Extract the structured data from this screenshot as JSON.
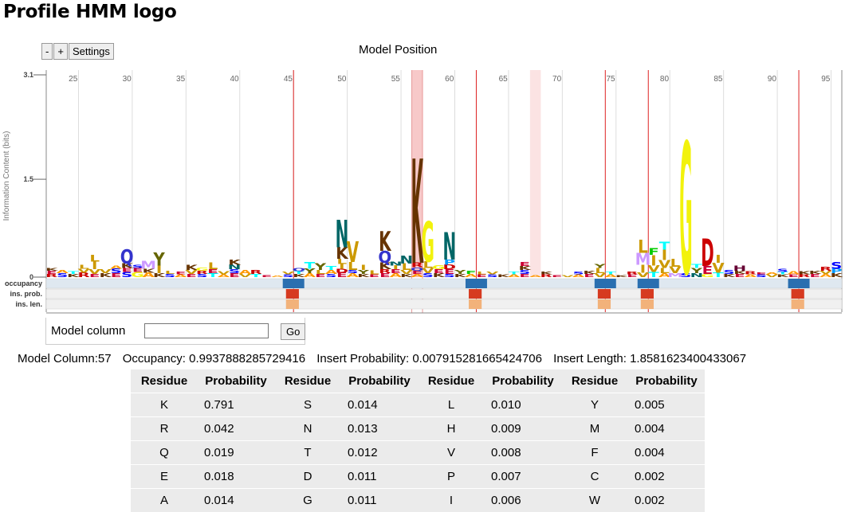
{
  "page": {
    "title": "Profile HMM logo"
  },
  "controls": {
    "zoom_out": "-",
    "zoom_in": "+",
    "settings": "Settings"
  },
  "logo": {
    "x_title": "Model Position",
    "y_title": "Information Content (bits)",
    "y_ticks": [
      "3.1",
      "1.5",
      "0"
    ],
    "x_ticks": [
      "25",
      "30",
      "35",
      "40",
      "45",
      "50",
      "55",
      "60",
      "65",
      "70",
      "75",
      "80",
      "85",
      "90",
      "95"
    ],
    "row_labels": [
      "occupancy",
      "ins. prob.",
      "ins. len."
    ]
  },
  "chart_data": {
    "type": "bar",
    "title": "",
    "xlabel": "Model Position",
    "ylabel": "Information Content (bits)",
    "ylim": [
      0,
      3.1
    ],
    "xlim": [
      23,
      97
    ],
    "start_position": 23,
    "grid": true,
    "highlighted_positions": [
      57,
      68
    ],
    "insert_markers": [
      46,
      63,
      75,
      79,
      93
    ],
    "stacks": [
      {
        "x": 23,
        "glyphs": [
          [
            "R",
            0.05
          ],
          [
            "E",
            0.05
          ],
          [
            "K",
            0.04
          ]
        ]
      },
      {
        "x": 24,
        "glyphs": [
          [
            "S",
            0.06
          ],
          [
            "A",
            0.05
          ]
        ]
      },
      {
        "x": 25,
        "glyphs": [
          [
            "K",
            0.05
          ],
          [
            "T",
            0.04
          ]
        ]
      },
      {
        "x": 26,
        "glyphs": [
          [
            "R",
            0.07
          ],
          [
            "V",
            0.06
          ],
          [
            "L",
            0.06
          ]
        ]
      },
      {
        "x": 27,
        "glyphs": [
          [
            "E",
            0.05
          ],
          [
            "V",
            0.07
          ],
          [
            "I",
            0.12
          ],
          [
            "L",
            0.1
          ]
        ]
      },
      {
        "x": 28,
        "glyphs": [
          [
            "K",
            0.06
          ],
          [
            "V",
            0.06
          ]
        ]
      },
      {
        "x": 29,
        "glyphs": [
          [
            "E",
            0.06
          ],
          [
            "S",
            0.07
          ],
          [
            "A",
            0.05
          ]
        ]
      },
      {
        "x": 30,
        "glyphs": [
          [
            "S",
            0.08
          ],
          [
            "E",
            0.06
          ],
          [
            "K",
            0.07
          ],
          [
            "Q",
            0.22
          ]
        ]
      },
      {
        "x": 31,
        "glyphs": [
          [
            "G",
            0.08
          ],
          [
            "E",
            0.06
          ],
          [
            "S",
            0.05
          ]
        ]
      },
      {
        "x": 32,
        "glyphs": [
          [
            "A",
            0.07
          ],
          [
            "K",
            0.06
          ],
          [
            "M",
            0.12
          ]
        ]
      },
      {
        "x": 33,
        "glyphs": [
          [
            "K",
            0.06
          ],
          [
            "I",
            0.12
          ],
          [
            "Y",
            0.2
          ]
        ]
      },
      {
        "x": 34,
        "glyphs": [
          [
            "S",
            0.05
          ],
          [
            "L",
            0.05
          ]
        ]
      },
      {
        "x": 35,
        "glyphs": [
          [
            "A",
            0.04
          ],
          [
            "E",
            0.04
          ]
        ]
      },
      {
        "x": 36,
        "glyphs": [
          [
            "E",
            0.05
          ],
          [
            "V",
            0.06
          ],
          [
            "K",
            0.08
          ]
        ]
      },
      {
        "x": 37,
        "glyphs": [
          [
            "S",
            0.05
          ],
          [
            "R",
            0.05
          ],
          [
            "G",
            0.05
          ]
        ]
      },
      {
        "x": 38,
        "glyphs": [
          [
            "T",
            0.06
          ],
          [
            "E",
            0.06
          ],
          [
            "L",
            0.1
          ]
        ]
      },
      {
        "x": 39,
        "glyphs": [
          [
            "A",
            0.04
          ],
          [
            "V",
            0.05
          ]
        ]
      },
      {
        "x": 40,
        "glyphs": [
          [
            "E",
            0.06
          ],
          [
            "S",
            0.06
          ],
          [
            "N",
            0.07
          ],
          [
            "K",
            0.08
          ]
        ]
      },
      {
        "x": 41,
        "glyphs": [
          [
            "V",
            0.05
          ],
          [
            "A",
            0.06
          ]
        ]
      },
      {
        "x": 42,
        "glyphs": [
          [
            "T",
            0.05
          ],
          [
            "R",
            0.06
          ]
        ]
      },
      {
        "x": 43,
        "glyphs": [
          [
            "E",
            0.03
          ]
        ]
      },
      {
        "x": 44,
        "glyphs": [
          [
            "A",
            0.02
          ]
        ]
      },
      {
        "x": 45,
        "glyphs": [
          [
            "S",
            0.04
          ],
          [
            "V",
            0.04
          ]
        ]
      },
      {
        "x": 46,
        "glyphs": [
          [
            "K",
            0.05
          ],
          [
            "T",
            0.04
          ],
          [
            "Q",
            0.05
          ]
        ]
      },
      {
        "x": 47,
        "glyphs": [
          [
            "A",
            0.06
          ],
          [
            "Y",
            0.07
          ],
          [
            "T",
            0.1
          ]
        ]
      },
      {
        "x": 48,
        "glyphs": [
          [
            "E",
            0.05
          ],
          [
            "L",
            0.06
          ],
          [
            "Y",
            0.1
          ]
        ]
      },
      {
        "x": 49,
        "glyphs": [
          [
            "S",
            0.05
          ],
          [
            "A",
            0.06
          ],
          [
            "T",
            0.06
          ]
        ]
      },
      {
        "x": 50,
        "glyphs": [
          [
            "E",
            0.07
          ],
          [
            "D",
            0.06
          ],
          [
            "I",
            0.07
          ],
          [
            "L",
            0.08
          ],
          [
            "K",
            0.18
          ],
          [
            "N",
            0.42
          ]
        ]
      },
      {
        "x": 51,
        "glyphs": [
          [
            "A",
            0.06
          ],
          [
            "S",
            0.05
          ],
          [
            "L",
            0.12
          ],
          [
            "V",
            0.32
          ]
        ]
      },
      {
        "x": 52,
        "glyphs": [
          [
            "K",
            0.05
          ],
          [
            "Y",
            0.06
          ],
          [
            "I",
            0.08
          ]
        ]
      },
      {
        "x": 53,
        "glyphs": [
          [
            "E",
            0.04
          ],
          [
            "L",
            0.06
          ]
        ]
      },
      {
        "x": 54,
        "glyphs": [
          [
            "E",
            0.06
          ],
          [
            "R",
            0.06
          ],
          [
            "K",
            0.1
          ],
          [
            "Q",
            0.18
          ],
          [
            "K",
            0.3
          ]
        ]
      },
      {
        "x": 55,
        "glyphs": [
          [
            "A",
            0.06
          ],
          [
            "E",
            0.06
          ],
          [
            "I",
            0.06
          ],
          [
            "N",
            0.06
          ]
        ]
      },
      {
        "x": 56,
        "glyphs": [
          [
            "K",
            0.05
          ],
          [
            "V",
            0.06
          ],
          [
            "L",
            0.1
          ],
          [
            "N",
            0.12
          ]
        ]
      },
      {
        "x": 57,
        "glyphs": [
          [
            "A",
            0.05
          ],
          [
            "E",
            0.05
          ],
          [
            "Q",
            0.05
          ],
          [
            "R",
            0.07
          ],
          [
            "K",
            1.6
          ]
        ]
      },
      {
        "x": 58,
        "glyphs": [
          [
            "S",
            0.06
          ],
          [
            "V",
            0.08
          ],
          [
            "L",
            0.1
          ],
          [
            "G",
            0.62
          ]
        ]
      },
      {
        "x": 59,
        "glyphs": [
          [
            "K",
            0.06
          ],
          [
            "E",
            0.06
          ],
          [
            "G",
            0.06
          ]
        ]
      },
      {
        "x": 60,
        "glyphs": [
          [
            "S",
            0.05
          ],
          [
            "E",
            0.07
          ],
          [
            "D",
            0.07
          ],
          [
            "P",
            0.08
          ],
          [
            "N",
            0.42
          ]
        ]
      },
      {
        "x": 61,
        "glyphs": [
          [
            "K",
            0.05
          ],
          [
            "Y",
            0.06
          ]
        ]
      },
      {
        "x": 62,
        "glyphs": [
          [
            "A",
            0.05
          ],
          [
            "F",
            0.05
          ]
        ]
      },
      {
        "x": 63,
        "glyphs": [
          [
            "E",
            0.04
          ],
          [
            "L",
            0.04
          ]
        ]
      },
      {
        "x": 64,
        "glyphs": [
          [
            "S",
            0.04
          ],
          [
            "V",
            0.04
          ]
        ]
      },
      {
        "x": 65,
        "glyphs": [
          [
            "K",
            0.04
          ]
        ]
      },
      {
        "x": 66,
        "glyphs": [
          [
            "A",
            0.04
          ],
          [
            "T",
            0.04
          ]
        ]
      },
      {
        "x": 67,
        "glyphs": [
          [
            "E",
            0.05
          ],
          [
            "S",
            0.06
          ],
          [
            "K",
            0.06
          ],
          [
            "E",
            0.06
          ]
        ]
      },
      {
        "x": 68,
        "glyphs": [
          [
            "A",
            0.03
          ]
        ]
      },
      {
        "x": 69,
        "glyphs": [
          [
            "R",
            0.04
          ],
          [
            "K",
            0.04
          ]
        ]
      },
      {
        "x": 70,
        "glyphs": [
          [
            "E",
            0.03
          ]
        ]
      },
      {
        "x": 71,
        "glyphs": [
          [
            "V",
            0.03
          ]
        ]
      },
      {
        "x": 72,
        "glyphs": [
          [
            "A",
            0.04
          ],
          [
            "S",
            0.04
          ]
        ]
      },
      {
        "x": 73,
        "glyphs": [
          [
            "E",
            0.05
          ],
          [
            "K",
            0.05
          ]
        ]
      },
      {
        "x": 74,
        "glyphs": [
          [
            "V",
            0.06
          ],
          [
            "L",
            0.08
          ],
          [
            "Y",
            0.06
          ]
        ]
      },
      {
        "x": 75,
        "glyphs": [
          [
            "A",
            0.04
          ],
          [
            "T",
            0.04
          ]
        ]
      },
      {
        "x": 76,
        "glyphs": [
          [
            "K",
            0.03
          ]
        ]
      },
      {
        "x": 77,
        "glyphs": [
          [
            "E",
            0.04
          ],
          [
            "R",
            0.04
          ]
        ]
      },
      {
        "x": 78,
        "glyphs": [
          [
            "V",
            0.07
          ],
          [
            "I",
            0.12
          ],
          [
            "M",
            0.18
          ],
          [
            "L",
            0.2
          ]
        ]
      },
      {
        "x": 79,
        "glyphs": [
          [
            "T",
            0.08
          ],
          [
            "V",
            0.1
          ],
          [
            "I",
            0.16
          ],
          [
            "F",
            0.1
          ]
        ]
      },
      {
        "x": 80,
        "glyphs": [
          [
            "A",
            0.06
          ],
          [
            "L",
            0.08
          ],
          [
            "V",
            0.12
          ],
          [
            "I",
            0.16
          ],
          [
            "T",
            0.12
          ]
        ]
      },
      {
        "x": 81,
        "glyphs": [
          [
            "M",
            0.06
          ],
          [
            "V",
            0.1
          ],
          [
            "L",
            0.12
          ]
        ]
      },
      {
        "x": 82,
        "glyphs": [
          [
            "S",
            0.06
          ],
          [
            "G",
            2.02
          ]
        ]
      },
      {
        "x": 83,
        "glyphs": [
          [
            "N",
            0.06
          ],
          [
            "Y",
            0.08
          ],
          [
            "T",
            0.06
          ]
        ]
      },
      {
        "x": 84,
        "glyphs": [
          [
            "G",
            0.05
          ],
          [
            "E",
            0.12
          ],
          [
            "D",
            0.42
          ]
        ]
      },
      {
        "x": 85,
        "glyphs": [
          [
            "T",
            0.07
          ],
          [
            "V",
            0.15
          ],
          [
            "I",
            0.12
          ]
        ]
      },
      {
        "x": 86,
        "glyphs": [
          [
            "K",
            0.05
          ],
          [
            "S",
            0.06
          ]
        ]
      },
      {
        "x": 87,
        "glyphs": [
          [
            "E",
            0.05
          ],
          [
            "K",
            0.05
          ],
          [
            "H",
            0.08
          ]
        ]
      },
      {
        "x": 88,
        "glyphs": [
          [
            "A",
            0.04
          ],
          [
            "R",
            0.05
          ]
        ]
      },
      {
        "x": 89,
        "glyphs": [
          [
            "S",
            0.04
          ],
          [
            "E",
            0.03
          ]
        ]
      },
      {
        "x": 90,
        "glyphs": [
          [
            "V",
            0.04
          ],
          [
            "A",
            0.03
          ]
        ]
      },
      {
        "x": 91,
        "glyphs": [
          [
            "K",
            0.04
          ],
          [
            "T",
            0.04
          ],
          [
            "S",
            0.05
          ]
        ]
      },
      {
        "x": 92,
        "glyphs": [
          [
            "E",
            0.04
          ],
          [
            "A",
            0.05
          ]
        ]
      },
      {
        "x": 93,
        "glyphs": [
          [
            "R",
            0.04
          ],
          [
            "K",
            0.05
          ]
        ]
      },
      {
        "x": 94,
        "glyphs": [
          [
            "E",
            0.05
          ],
          [
            "K",
            0.05
          ]
        ]
      },
      {
        "x": 95,
        "glyphs": [
          [
            "A",
            0.05
          ],
          [
            "V",
            0.05
          ],
          [
            "R",
            0.06
          ]
        ]
      },
      {
        "x": 96,
        "glyphs": [
          [
            "K",
            0.06
          ],
          [
            "P",
            0.07
          ],
          [
            "S",
            0.1
          ]
        ]
      }
    ]
  },
  "model_column_form": {
    "label": "Model column",
    "input_value": "",
    "go_label": "Go"
  },
  "column_info": {
    "model_column": "Model Column:57",
    "occupancy": "Occupancy: 0.9937888285729416",
    "insert_probability": "Insert Probability: 0.007915281665424706",
    "insert_length": "Insert Length: 1.8581623400433067"
  },
  "prob_table": {
    "headers": [
      "Residue",
      "Probability",
      "Residue",
      "Probability",
      "Residue",
      "Probability",
      "Residue",
      "Probability"
    ],
    "rows": [
      [
        "K",
        "0.791",
        "S",
        "0.014",
        "L",
        "0.010",
        "Y",
        "0.005"
      ],
      [
        "R",
        "0.042",
        "N",
        "0.013",
        "H",
        "0.009",
        "M",
        "0.004"
      ],
      [
        "Q",
        "0.019",
        "T",
        "0.012",
        "V",
        "0.008",
        "F",
        "0.004"
      ],
      [
        "E",
        "0.018",
        "D",
        "0.011",
        "P",
        "0.007",
        "C",
        "0.002"
      ],
      [
        "A",
        "0.014",
        "G",
        "0.011",
        "I",
        "0.006",
        "W",
        "0.002"
      ]
    ]
  },
  "residue_colors": {
    "A": "#ff9900",
    "C": "#ff9999",
    "D": "#cc0000",
    "E": "#cc0033",
    "F": "#00cc00",
    "G": "#f2f20c",
    "H": "#660033",
    "I": "#cc9900",
    "K": "#663300",
    "L": "#cc9900",
    "M": "#cc99ff",
    "N": "#006666",
    "P": "#0099ff",
    "Q": "#3333cc",
    "R": "#cc0000",
    "S": "#0000ff",
    "T": "#00ffff",
    "V": "#cc9900",
    "W": "#cc99ff",
    "Y": "#666600"
  }
}
